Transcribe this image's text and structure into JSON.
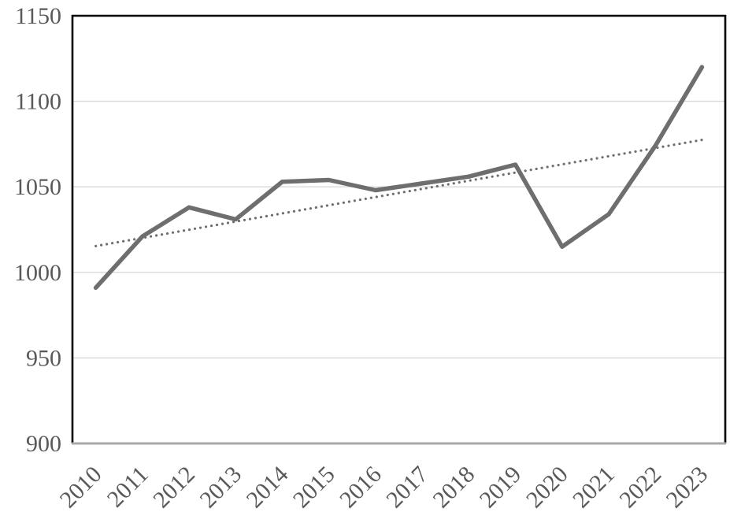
{
  "chart_data": {
    "type": "line",
    "title": "",
    "xlabel": "",
    "ylabel": "",
    "categories": [
      "2010",
      "2011",
      "2012",
      "2013",
      "2014",
      "2015",
      "2016",
      "2017",
      "2018",
      "2019",
      "2020",
      "2021",
      "2022",
      "2023"
    ],
    "series": [
      {
        "name": "series1",
        "style": "solid",
        "values": [
          991,
          1021,
          1038,
          1031,
          1053,
          1054,
          1048,
          1052,
          1056,
          1063,
          1015,
          1034,
          1074,
          1120
        ]
      },
      {
        "name": "linear-trendline",
        "style": "dotted",
        "derived_from": "series1",
        "endpoint_values": [
          1015,
          1078
        ]
      }
    ],
    "ylim": [
      900,
      1150
    ],
    "y_ticks": [
      900,
      950,
      1000,
      1050,
      1100,
      1150
    ],
    "x_tick_rotation_deg": -45,
    "grid": "horizontal",
    "legend_position": "none",
    "colors": {
      "line": "#6e6e6e",
      "trendline": "#6e6e6e",
      "gridline": "#d9d9d9",
      "tick_label": "#595959",
      "plot_border": "#000000",
      "bottom_axis_line": "#a8a8a8",
      "background": "#ffffff"
    }
  }
}
